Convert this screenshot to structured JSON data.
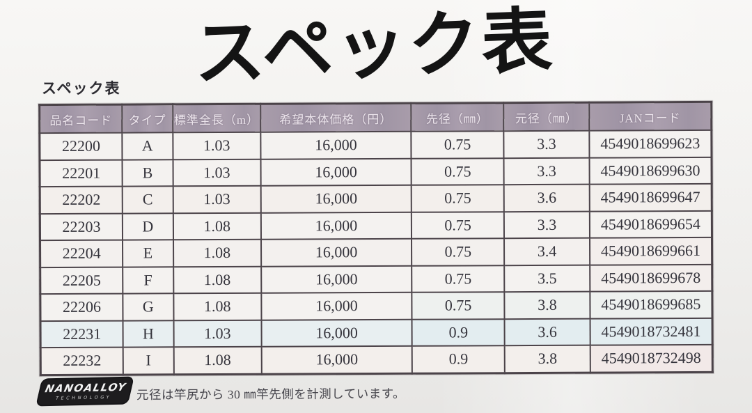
{
  "title": {
    "text": "スペック表"
  },
  "section_label": "スペック表",
  "table": {
    "columns": [
      "品名コード",
      "タイプ",
      "標準全長（m）",
      "希望本体価格（円）",
      "先径（㎜）",
      "元径（㎜）",
      "JANコード"
    ],
    "rows": [
      [
        "22200",
        "A",
        "1.03",
        "16,000",
        "0.75",
        "3.3",
        "4549018699623"
      ],
      [
        "22201",
        "B",
        "1.03",
        "16,000",
        "0.75",
        "3.3",
        "4549018699630"
      ],
      [
        "22202",
        "C",
        "1.03",
        "16,000",
        "0.75",
        "3.6",
        "4549018699647"
      ],
      [
        "22203",
        "D",
        "1.08",
        "16,000",
        "0.75",
        "3.3",
        "4549018699654"
      ],
      [
        "22204",
        "E",
        "1.08",
        "16,000",
        "0.75",
        "3.4",
        "4549018699661"
      ],
      [
        "22205",
        "F",
        "1.08",
        "16,000",
        "0.75",
        "3.5",
        "4549018699678"
      ],
      [
        "22206",
        "G",
        "1.08",
        "16,000",
        "0.75",
        "3.8",
        "4549018699685"
      ],
      [
        "22231",
        "H",
        "1.03",
        "16,000",
        "0.9",
        "3.6",
        "4549018732481"
      ],
      [
        "22232",
        "I",
        "1.08",
        "16,000",
        "0.9",
        "3.8",
        "4549018732498"
      ]
    ],
    "column_widths_percent": [
      12.3,
      7.5,
      13.1,
      22.4,
      13.8,
      12.7,
      18.2
    ]
  },
  "footer": {
    "logo_line1": "NANOALLOY",
    "logo_line2": "TECHNOLOGY",
    "note": "元径は竿尻から 30 ㎜竿先側を計測しています。"
  },
  "colors": {
    "header_bg": "#a298a7",
    "table_border": "#4b4349",
    "text": "#35343c",
    "logo_bg": "#1d1c1e"
  }
}
